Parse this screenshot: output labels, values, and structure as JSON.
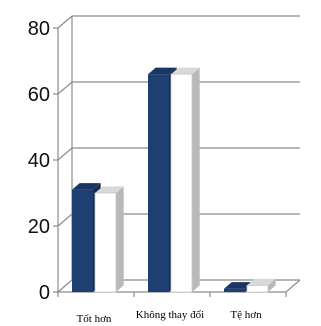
{
  "chart_data": {
    "type": "bar",
    "style": "3d-clustered-column",
    "categories": [
      "Tốt hơn",
      "Không thay đổi",
      "Tệ hơn"
    ],
    "series": [
      {
        "color": "#1f3f73",
        "values": [
          31,
          66,
          1
        ]
      },
      {
        "color": "#ffffff",
        "values": [
          30,
          66,
          2
        ]
      }
    ],
    "y_ticks": [
      "0",
      "20",
      "40",
      "60",
      "80"
    ],
    "ylim": [
      0,
      80
    ],
    "grid": true,
    "legend": "none",
    "title": "",
    "xlabel": "",
    "ylabel": ""
  }
}
